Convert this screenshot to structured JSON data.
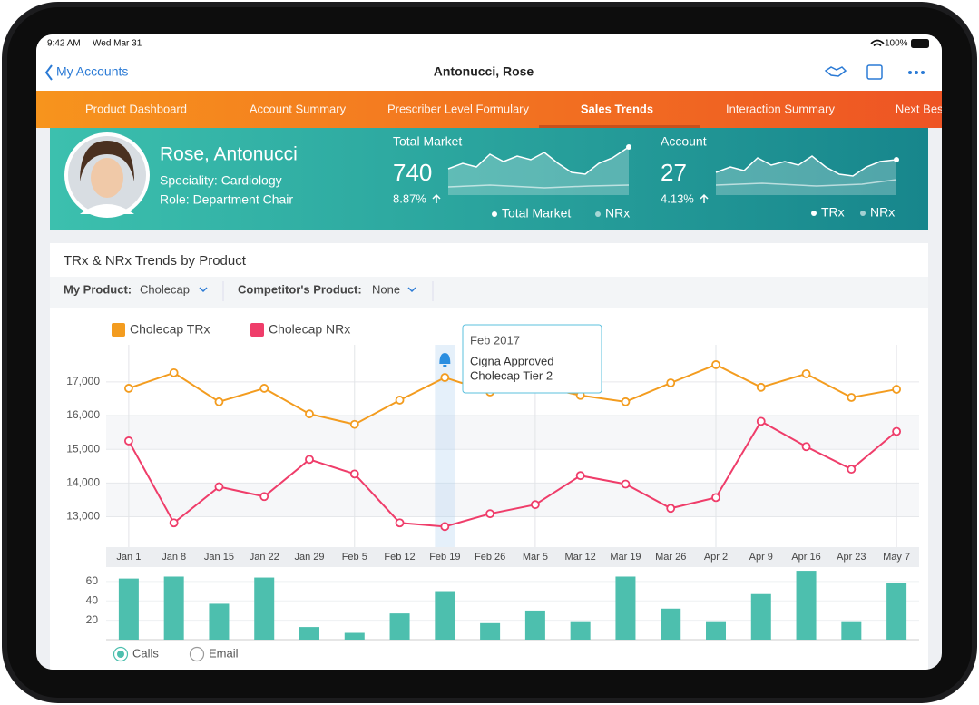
{
  "status_bar": {
    "time": "9:42 AM",
    "date": "Wed Mar 31",
    "battery": "100%"
  },
  "nav": {
    "back": "My Accounts",
    "title": "Antonucci, Rose"
  },
  "tabs": [
    "Product Dashboard",
    "Account Summary",
    "Prescriber Level Formulary",
    "Sales Trends",
    "Interaction Summary",
    "Next Best"
  ],
  "profile": {
    "name": "Rose, Antonucci",
    "speciality": "Speciality: Cardiology",
    "role": "Role: Department Chair"
  },
  "kpis": [
    {
      "title": "Total Market",
      "value": 740,
      "change": "8.87%",
      "legend": [
        "Total Market",
        "NRx"
      ]
    },
    {
      "title": "Account",
      "value": 27,
      "change": "4.13%",
      "legend": [
        "TRx",
        "NRx"
      ]
    }
  ],
  "card": {
    "title": "TRx & NRx Trends by Product",
    "my_product_label": "My Product:",
    "my_product": "Cholecap",
    "competitor_label": "Competitor's Product:",
    "competitor": "None"
  },
  "chart_data": [
    {
      "type": "line",
      "categories": [
        "Jan 1",
        "Jan 8",
        "Jan 15",
        "Jan 22",
        "Jan 29",
        "Feb 5",
        "Feb 12",
        "Feb 19",
        "Feb 26",
        "Mar 5",
        "Mar 12",
        "Mar 19",
        "Mar 26",
        "Apr 2",
        "Apr 9",
        "Apr 16",
        "Apr 23",
        "May 7"
      ],
      "series": [
        {
          "name": "Cholecap TRx",
          "color": "#f39c1f",
          "values": [
            16810,
            17270,
            16410,
            16810,
            16050,
            15740,
            16460,
            17130,
            16700,
            16900,
            16600,
            16410,
            16970,
            17510,
            16840,
            17240,
            16540,
            16780
          ]
        },
        {
          "name": "Cholecap NRx",
          "color": "#ef3d6a",
          "values": [
            15250,
            12820,
            13890,
            13600,
            14700,
            14270,
            12820,
            12710,
            13090,
            13360,
            14220,
            13970,
            13250,
            13570,
            15830,
            15080,
            14410,
            15530
          ]
        }
      ],
      "ylim": [
        12100,
        18100
      ],
      "yticks": [
        {
          "value": 13000,
          "label": "13,000"
        },
        {
          "value": 14000,
          "label": "14,000"
        },
        {
          "value": 15000,
          "label": "15,000"
        },
        {
          "value": 16000,
          "label": "16,000"
        },
        {
          "value": 17000,
          "label": "17,000"
        }
      ],
      "grid": true,
      "annotation": {
        "title": "Feb 2017",
        "lines": [
          "Cigna Approved",
          "Cholecap Tier 2"
        ]
      }
    },
    {
      "type": "bar",
      "values": [
        63,
        65,
        37,
        64,
        13,
        7,
        27,
        50,
        17,
        30,
        19,
        65,
        32,
        19,
        47,
        71,
        19,
        58
      ],
      "color": "#4dbfae",
      "ylim": [
        0,
        72
      ],
      "yticks": [
        20,
        40,
        60
      ],
      "toggle": [
        "Calls",
        "Email"
      ]
    }
  ]
}
